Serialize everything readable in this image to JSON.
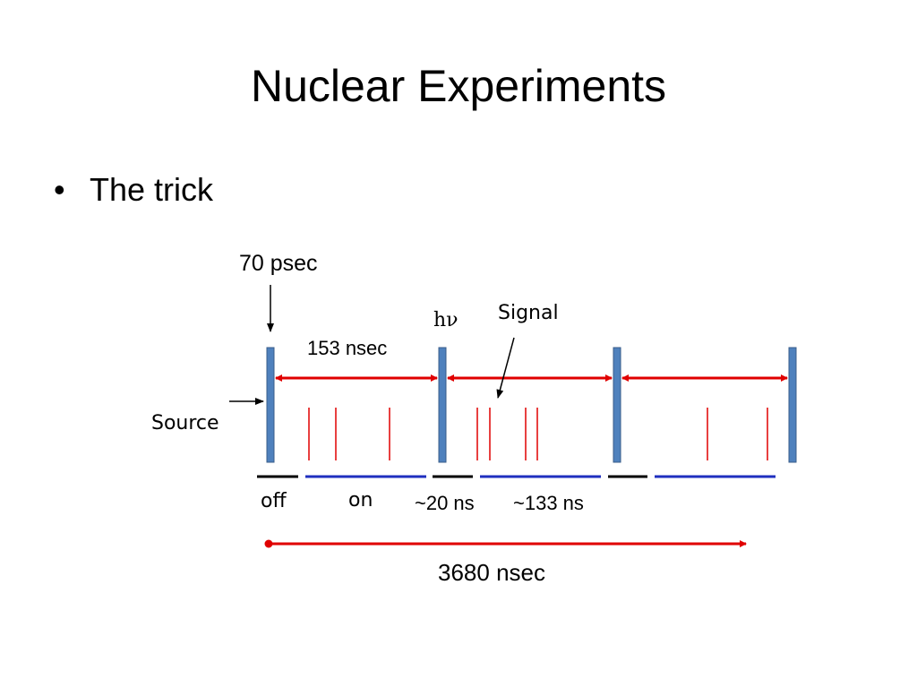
{
  "slide": {
    "title": "Nuclear Experiments",
    "bullet_symbol": "•",
    "bullet_text": "The trick"
  },
  "diagram": {
    "pulse_width_label": "70 psec",
    "photon_label": "hν",
    "signal_label": "Signal",
    "period_label": "153 nsec",
    "source_label": "Source",
    "off_label": "off",
    "on_label": "on",
    "off_duration_label": "~20 ns",
    "on_duration_label": "~133 ns",
    "total_label": "3680 nsec",
    "colors": {
      "pulse": "#4f81bd",
      "pulse_border": "#385d8a",
      "arrow_red": "#e00000",
      "signal_line": "#e00000",
      "off_segment": "#000000",
      "on_segment": "#1f2fbf"
    }
  }
}
